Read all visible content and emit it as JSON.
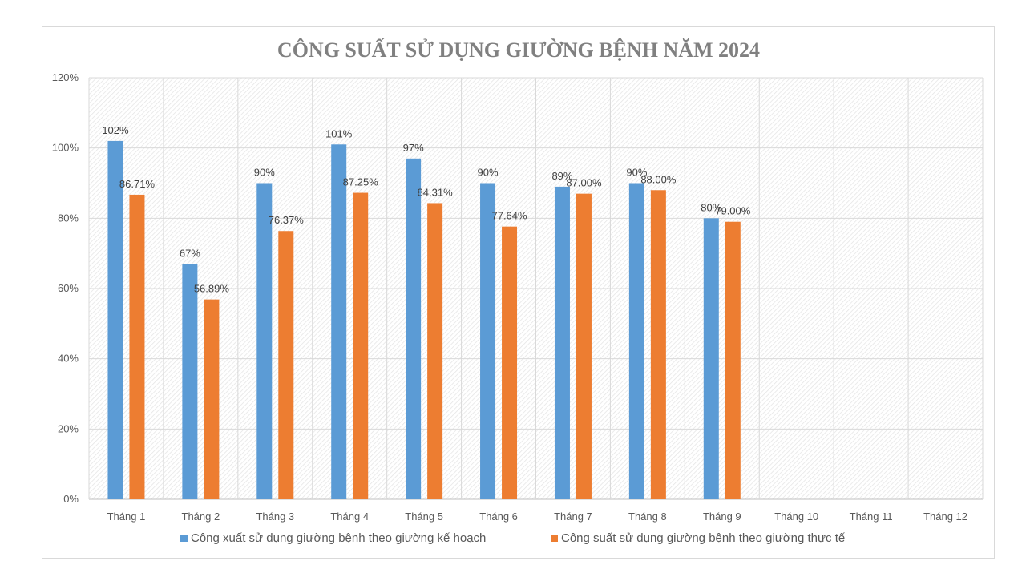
{
  "chart_data": {
    "type": "bar",
    "title": "CÔNG SUẤT SỬ DỤNG GIƯỜNG BỆNH NĂM 2024",
    "categories": [
      "Tháng 1",
      "Tháng 2",
      "Tháng 3",
      "Tháng 4",
      "Tháng 5",
      "Tháng 6",
      "Tháng 7",
      "Tháng 8",
      "Tháng 9",
      "Tháng 10",
      "Tháng 11",
      "Tháng 12"
    ],
    "series": [
      {
        "name": "Công xuất sử dụng giường bệnh theo giường kế hoạch",
        "color": "#5b9bd5",
        "values": [
          102,
          67,
          90,
          101,
          97,
          90,
          89,
          90,
          80,
          null,
          null,
          null
        ],
        "labels": [
          "102%",
          "67%",
          "90%",
          "101%",
          "97%",
          "90%",
          "89%",
          "90%",
          "80%",
          "",
          "",
          ""
        ]
      },
      {
        "name": "Công suất sử dụng giường bệnh theo giường thực tế",
        "color": "#ed7d31",
        "values": [
          86.71,
          56.89,
          76.37,
          87.25,
          84.31,
          77.64,
          87.0,
          88.0,
          79.0,
          null,
          null,
          null
        ],
        "labels": [
          "86.71%",
          "56.89%",
          "76.37%",
          "87.25%",
          "84.31%",
          "77.64%",
          "87.00%",
          "88.00%",
          "79.00%",
          "",
          "",
          ""
        ]
      }
    ],
    "y_ticks": [
      "0%",
      "20%",
      "40%",
      "60%",
      "80%",
      "100%",
      "120%"
    ],
    "ylim": [
      0,
      120
    ],
    "xlabel": "",
    "ylabel": "",
    "grid": true,
    "legend_position": "bottom"
  }
}
